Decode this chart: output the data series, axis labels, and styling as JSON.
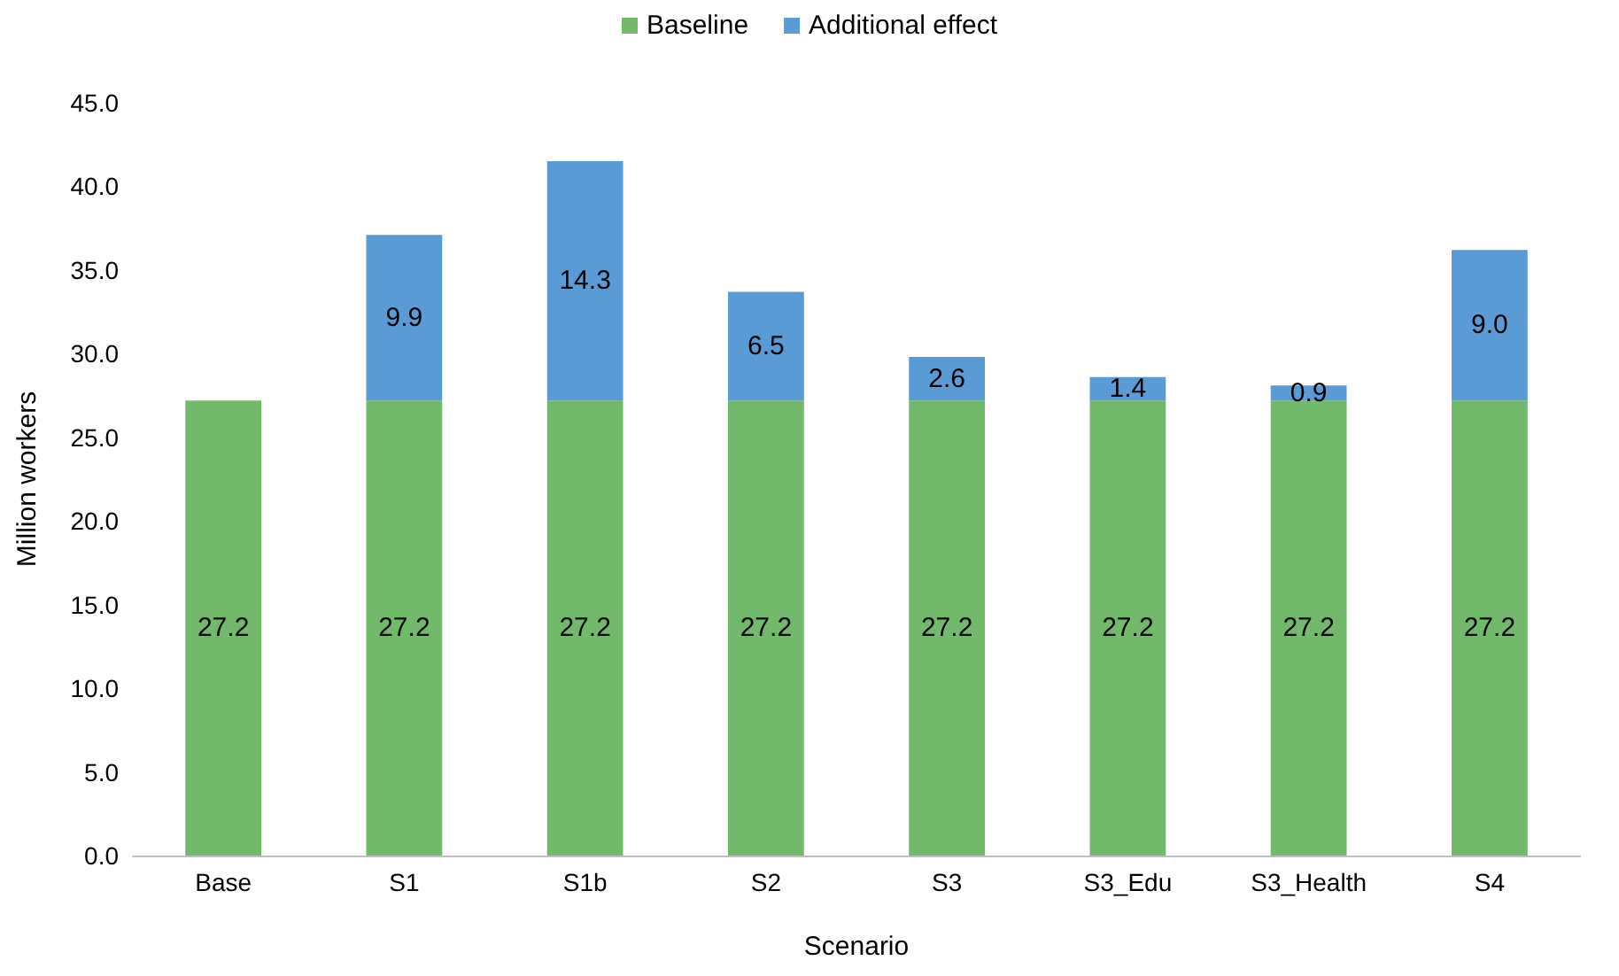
{
  "chart_data": {
    "type": "bar",
    "stacked": true,
    "xlabel": "Scenario",
    "ylabel": "Million workers",
    "categories": [
      "Base",
      "S1",
      "S1b",
      "S2",
      "S3",
      "S3_Edu",
      "S3_Health",
      "S4"
    ],
    "series": [
      {
        "name": "Baseline",
        "color": "#72b96c",
        "values": [
          27.2,
          27.2,
          27.2,
          27.2,
          27.2,
          27.2,
          27.2,
          27.2
        ],
        "value_labels": [
          "27.2",
          "27.2",
          "27.2",
          "27.2",
          "27.2",
          "27.2",
          "27.2",
          "27.2"
        ]
      },
      {
        "name": "Additional effect",
        "color": "#5b9bd5",
        "values": [
          null,
          9.9,
          14.3,
          6.5,
          2.6,
          1.4,
          0.9,
          9.0
        ],
        "value_labels": [
          null,
          "9.9",
          "14.3",
          "6.5",
          "2.6",
          "1.4",
          "0.9",
          "9.0"
        ]
      }
    ],
    "ylim": [
      0,
      45
    ],
    "yticks": [
      {
        "value": 0,
        "label": "0.0"
      },
      {
        "value": 5,
        "label": "5.0"
      },
      {
        "value": 10,
        "label": "10.0"
      },
      {
        "value": 15,
        "label": "15.0"
      },
      {
        "value": 20,
        "label": "20.0"
      },
      {
        "value": 25,
        "label": "25.0"
      },
      {
        "value": 30,
        "label": "30.0"
      },
      {
        "value": 35,
        "label": "35.0"
      },
      {
        "value": 40,
        "label": "40.0"
      },
      {
        "value": 45,
        "label": "45.0"
      }
    ],
    "legend": "top",
    "grid": false
  }
}
